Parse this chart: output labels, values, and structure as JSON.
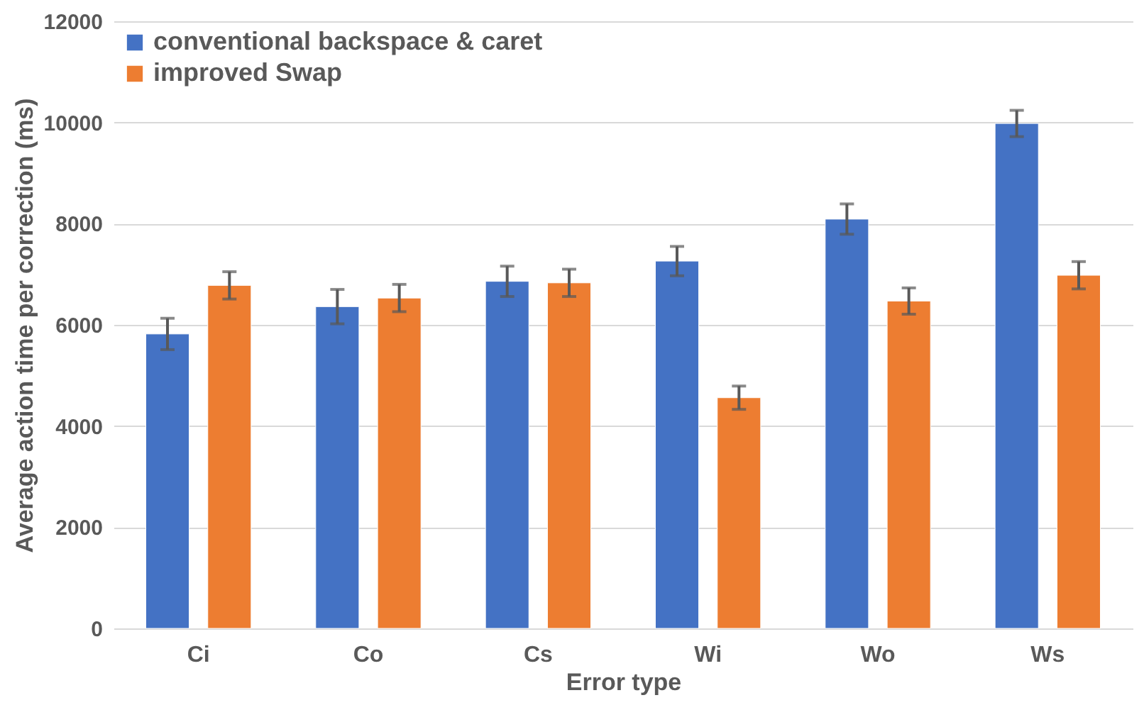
{
  "chart_data": {
    "type": "bar",
    "xlabel": "Error type",
    "ylabel": "Average action time per correction (ms)",
    "categories": [
      "Ci",
      "Co",
      "Cs",
      "Wi",
      "Wo",
      "Ws"
    ],
    "series": [
      {
        "name": "conventional backspace & caret",
        "color": "#4472c4",
        "values": [
          5820,
          6360,
          6860,
          7260,
          8090,
          9980
        ],
        "errors": [
          310,
          340,
          300,
          290,
          300,
          260
        ]
      },
      {
        "name": "improved Swap",
        "color": "#ed7d31",
        "values": [
          6780,
          6530,
          6830,
          4560,
          6470,
          6980
        ],
        "errors": [
          270,
          270,
          270,
          230,
          260,
          270
        ]
      }
    ],
    "ylim": [
      0,
      12000
    ],
    "yticks": [
      0,
      2000,
      4000,
      6000,
      8000,
      10000,
      12000
    ],
    "grid": "y",
    "legend": "top left"
  }
}
